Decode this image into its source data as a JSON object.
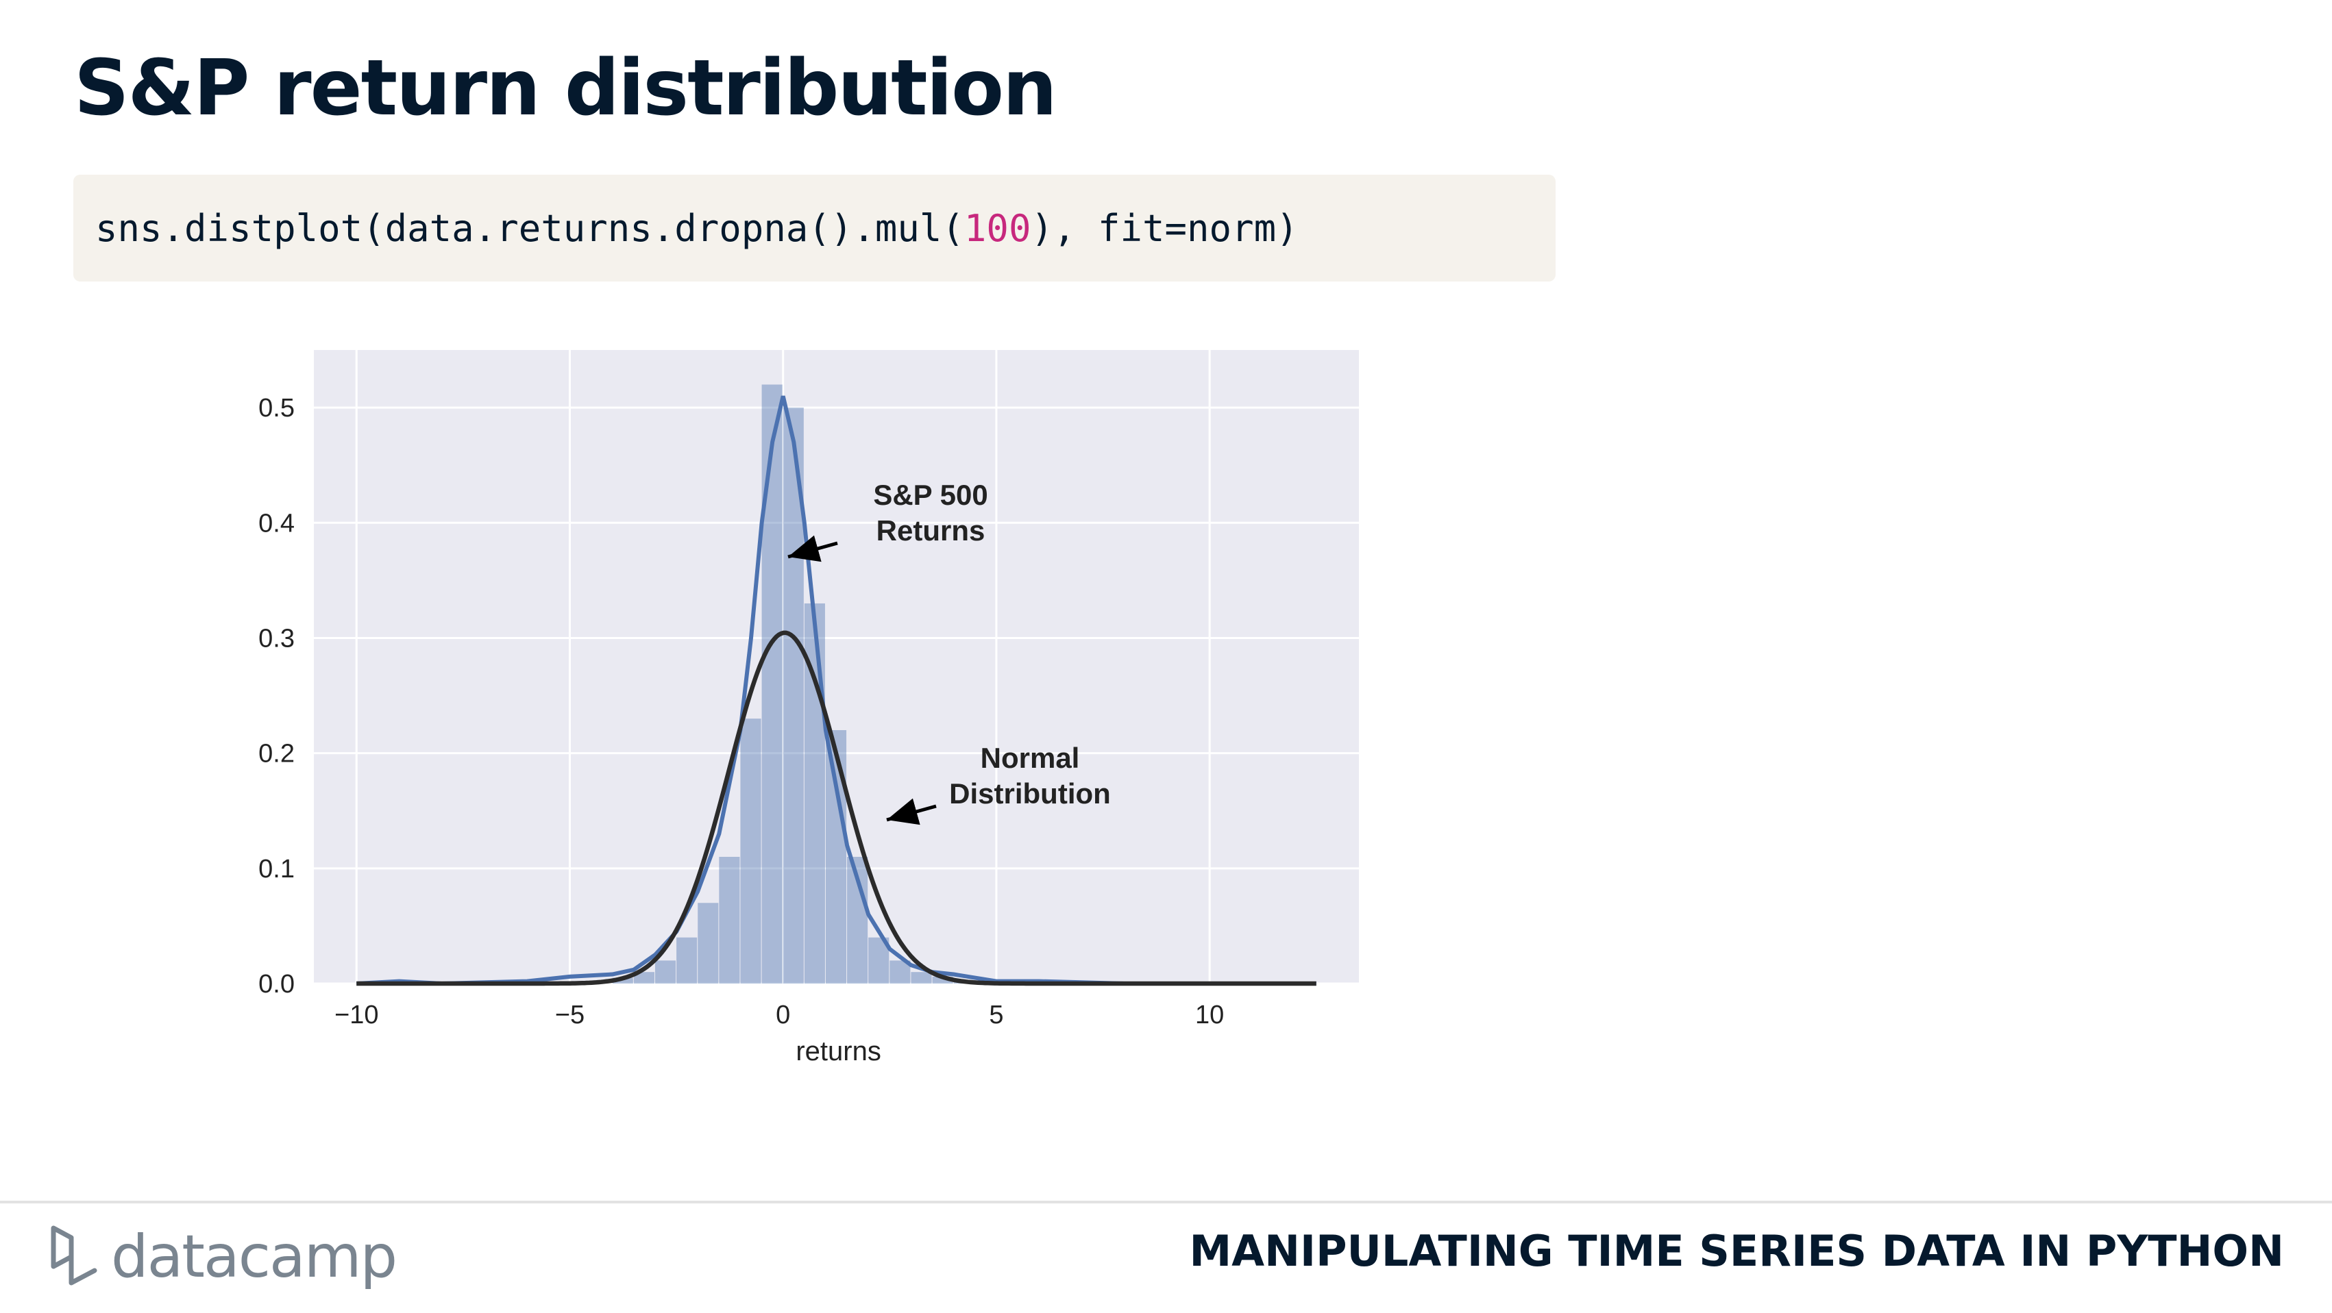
{
  "slide": {
    "title": "S&P return distribution",
    "code": {
      "prefix": "sns.distplot(data.returns.dropna().mul(",
      "number": "100",
      "suffix": "), fit=norm)"
    }
  },
  "chart_data": {
    "type": "histogram",
    "xlabel": "returns",
    "ylabel": "",
    "xlim": [
      -11,
      13.5
    ],
    "ylim": [
      0,
      0.55
    ],
    "xticks": [
      -10,
      -5,
      0,
      5,
      10
    ],
    "xtick_labels": [
      "−10",
      "−5",
      "0",
      "5",
      "10"
    ],
    "yticks": [
      0.0,
      0.1,
      0.2,
      0.3,
      0.4,
      0.5
    ],
    "ytick_labels": [
      "0.0",
      "0.1",
      "0.2",
      "0.3",
      "0.4",
      "0.5"
    ],
    "grid": true,
    "histogram": {
      "bin_width": 0.5,
      "bin_starts": [
        -4.0,
        -3.5,
        -3.0,
        -2.5,
        -2.0,
        -1.5,
        -1.0,
        -0.5,
        0.0,
        0.5,
        1.0,
        1.5,
        2.0,
        2.5,
        3.0,
        3.5,
        4.0
      ],
      "density": [
        0.005,
        0.01,
        0.02,
        0.04,
        0.07,
        0.11,
        0.23,
        0.52,
        0.5,
        0.33,
        0.22,
        0.11,
        0.04,
        0.02,
        0.01,
        0.006,
        0.003
      ],
      "color": "#4c72b0"
    },
    "kde_curve": {
      "x": [
        -10,
        -9,
        -8,
        -6,
        -5,
        -4,
        -3.5,
        -3,
        -2.5,
        -2,
        -1.5,
        -1,
        -0.75,
        -0.5,
        -0.25,
        0,
        0.25,
        0.5,
        0.75,
        1,
        1.5,
        2,
        2.5,
        3,
        3.5,
        4,
        4.5,
        5,
        6,
        7,
        8,
        10,
        12.5
      ],
      "y": [
        0.0,
        0.002,
        0.0,
        0.002,
        0.006,
        0.008,
        0.012,
        0.025,
        0.045,
        0.08,
        0.13,
        0.22,
        0.3,
        0.4,
        0.47,
        0.51,
        0.47,
        0.4,
        0.31,
        0.22,
        0.12,
        0.06,
        0.03,
        0.016,
        0.01,
        0.008,
        0.005,
        0.002,
        0.002,
        0.001,
        0.0,
        0.0,
        0.0
      ],
      "color": "#4c72b0"
    },
    "normal_fit": {
      "mean": 0.04,
      "sd": 1.31,
      "x_range": [
        -10,
        12.5
      ],
      "color": "#2b2b2b"
    },
    "annotations": [
      {
        "text": [
          "S&P 500",
          "Returns"
        ]
      },
      {
        "text": [
          "Normal",
          "Distribution"
        ]
      }
    ]
  },
  "footer": {
    "logo_text": "datacamp",
    "course_title": "MANIPULATING TIME SERIES DATA IN PYTHON"
  },
  "colors": {
    "title": "#05192d",
    "code_bg": "#f5f2ec",
    "code_number": "#c7287d",
    "plot_bg": "#eaeaf2"
  }
}
